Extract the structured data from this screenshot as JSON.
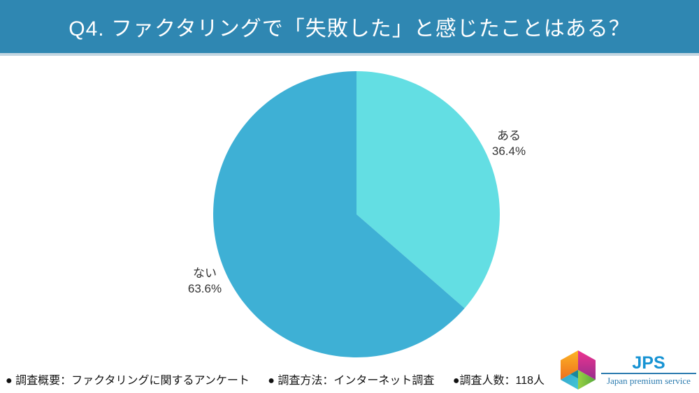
{
  "header": {
    "title": "Q4. ファクタリングで「失敗した」と感じたことはある？",
    "bg_color": "#2f87b2"
  },
  "chart_data": {
    "type": "pie",
    "title": "Q4. ファクタリングで「失敗した」と感じたことはある？",
    "labels": [
      "ある",
      "ない"
    ],
    "values": [
      36.4,
      63.6
    ],
    "pct_labels": [
      "36.4%",
      "63.6%"
    ],
    "colors": [
      "#63dee3",
      "#3eb0d5"
    ],
    "start_angle": "top",
    "direction": "clockwise",
    "legend_position": "none",
    "label_placement": "outside"
  },
  "footer": {
    "items": [
      "● 調査概要：ファクタリングに関するアンケート",
      "● 調査方法：インターネット調査",
      "●調査人数：118人"
    ]
  },
  "logo": {
    "abbr": "JPS",
    "subtitle": "Japan premium service",
    "accent_color": "#1793d3",
    "line_color": "#2d7cb0"
  }
}
